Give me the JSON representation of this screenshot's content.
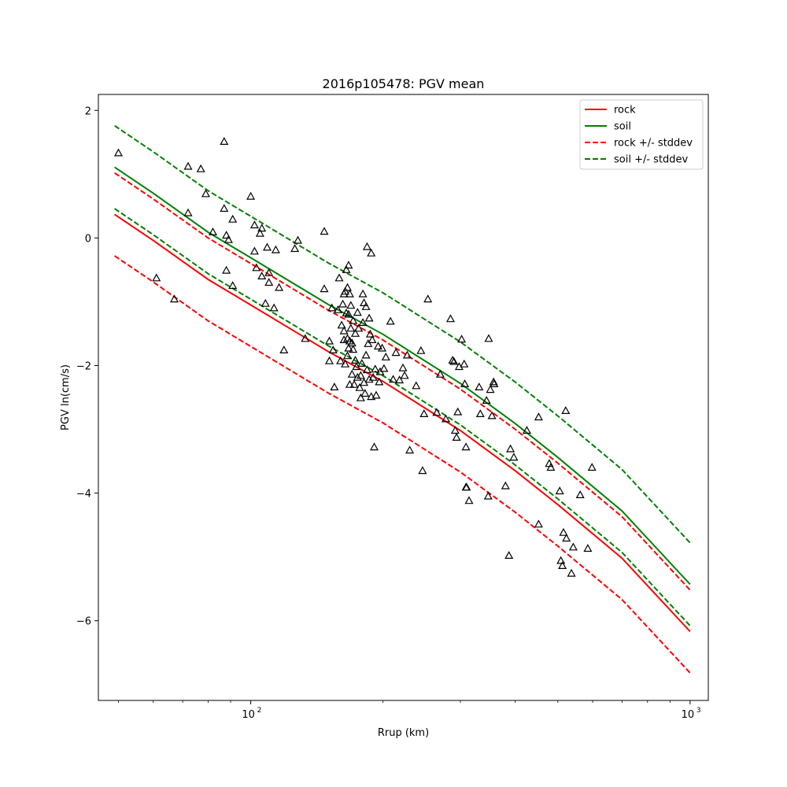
{
  "chart_data": {
    "type": "line",
    "title": "2016p105478: PGV mean",
    "xlabel": "Rrup (km)",
    "ylabel": "PGV ln(cm/s)",
    "xscale": "log",
    "xlim": [
      45,
      1100
    ],
    "ylim": [
      -7.25,
      2.25
    ],
    "yticks": [
      2,
      0,
      -2,
      -4,
      -6
    ],
    "ytick_labels": [
      "2",
      "0",
      "−2",
      "−4",
      "−6"
    ],
    "xticks": [
      100,
      1000
    ],
    "xtick_base": "10",
    "xtick_exps": [
      "2",
      "3"
    ],
    "grid": false,
    "legend_position": "top-right",
    "series": [
      {
        "name": "rock",
        "color": "#ff0000",
        "style": "solid",
        "x": [
          49,
          60,
          80,
          100,
          150,
          200,
          300,
          400,
          500,
          700,
          1000
        ],
        "y": [
          0.37,
          -0.04,
          -0.65,
          -1.05,
          -1.78,
          -2.25,
          -3.02,
          -3.65,
          -4.18,
          -5.02,
          -6.17
        ]
      },
      {
        "name": "soil",
        "color": "#008000",
        "style": "solid",
        "x": [
          49,
          60,
          80,
          100,
          150,
          200,
          300,
          400,
          500,
          700,
          1000
        ],
        "y": [
          1.11,
          0.7,
          0.09,
          -0.31,
          -1.04,
          -1.51,
          -2.28,
          -2.91,
          -3.44,
          -4.28,
          -5.43
        ]
      },
      {
        "name": "rock +/- stddev",
        "color": "#ff0000",
        "style": "dashed",
        "x": [
          49,
          60,
          80,
          100,
          150,
          200,
          300,
          400,
          500,
          700,
          1000
        ],
        "y": [
          1.02,
          0.61,
          0.0,
          -0.4,
          -1.13,
          -1.6,
          -2.37,
          -3.0,
          -3.53,
          -4.37,
          -5.52
        ]
      },
      {
        "name": "",
        "color": "#ff0000",
        "style": "dashed",
        "x": [
          49,
          60,
          80,
          100,
          150,
          200,
          300,
          400,
          500,
          700,
          1000
        ],
        "y": [
          -0.28,
          -0.69,
          -1.3,
          -1.7,
          -2.43,
          -2.9,
          -3.67,
          -4.3,
          -4.83,
          -5.67,
          -6.82
        ]
      },
      {
        "name": "soil +/- stddev",
        "color": "#008000",
        "style": "dashed",
        "x": [
          49,
          60,
          80,
          100,
          150,
          200,
          300,
          400,
          500,
          700,
          1000
        ],
        "y": [
          1.76,
          1.35,
          0.74,
          0.34,
          -0.39,
          -0.86,
          -1.63,
          -2.26,
          -2.79,
          -3.63,
          -4.78
        ]
      },
      {
        "name": "",
        "color": "#008000",
        "style": "dashed",
        "x": [
          49,
          60,
          80,
          100,
          150,
          200,
          300,
          400,
          500,
          700,
          1000
        ],
        "y": [
          0.46,
          0.05,
          -0.56,
          -0.96,
          -1.69,
          -2.16,
          -2.93,
          -3.56,
          -4.09,
          -4.93,
          -6.08
        ]
      }
    ],
    "observations": {
      "marker": "open-triangle",
      "color": "#000000",
      "points": [
        [
          50,
          1.33
        ],
        [
          61,
          -0.63
        ],
        [
          67,
          -0.96
        ],
        [
          72,
          1.12
        ],
        [
          72,
          0.39
        ],
        [
          77,
          1.08
        ],
        [
          79,
          0.69
        ],
        [
          82,
          0.09
        ],
        [
          87,
          1.51
        ],
        [
          87,
          0.46
        ],
        [
          88,
          0.04
        ],
        [
          88,
          -0.51
        ],
        [
          89,
          -0.03
        ],
        [
          91,
          0.29
        ],
        [
          91,
          -0.75
        ],
        [
          100,
          0.65
        ],
        [
          102,
          0.2
        ],
        [
          102,
          -0.21
        ],
        [
          103,
          -0.47
        ],
        [
          105,
          0.07
        ],
        [
          106,
          0.15
        ],
        [
          106,
          -0.6
        ],
        [
          108,
          -1.03
        ],
        [
          109,
          -0.15
        ],
        [
          110,
          -0.55
        ],
        [
          110,
          -0.7
        ],
        [
          113,
          -1.1
        ],
        [
          114,
          -0.19
        ],
        [
          116,
          -0.78
        ],
        [
          119,
          -1.76
        ],
        [
          126,
          -0.17
        ],
        [
          128,
          -0.04
        ],
        [
          133,
          -1.58
        ],
        [
          147,
          0.1
        ],
        [
          147,
          -0.8
        ],
        [
          151,
          -1.62
        ],
        [
          151,
          -1.93
        ],
        [
          153,
          -1.1
        ],
        [
          154,
          -1.76
        ],
        [
          155,
          -2.34
        ],
        [
          158,
          -1.13
        ],
        [
          159,
          -0.63
        ],
        [
          160,
          -1.93
        ],
        [
          161,
          -1.37
        ],
        [
          162,
          -1.04
        ],
        [
          163,
          -0.88
        ],
        [
          163,
          -1.46
        ],
        [
          163,
          -1.6
        ],
        [
          164,
          -0.84
        ],
        [
          164,
          -1.98
        ],
        [
          165,
          -0.5
        ],
        [
          165,
          -1.18
        ],
        [
          166,
          -0.78
        ],
        [
          166,
          -1.58
        ],
        [
          166,
          -1.85
        ],
        [
          167,
          -0.43
        ],
        [
          167,
          -1.2
        ],
        [
          167,
          -1.73
        ],
        [
          168,
          -0.88
        ],
        [
          168,
          -1.62
        ],
        [
          168,
          -2.3
        ],
        [
          169,
          -1.06
        ],
        [
          169,
          -1.42
        ],
        [
          170,
          -1.65
        ],
        [
          170,
          -2.14
        ],
        [
          171,
          -1.3
        ],
        [
          171,
          -1.75
        ],
        [
          172,
          -2.3
        ],
        [
          173,
          -1.5
        ],
        [
          173,
          -1.92
        ],
        [
          174,
          -2.02
        ],
        [
          175,
          -1.17
        ],
        [
          175,
          -2.19
        ],
        [
          176,
          -1.42
        ],
        [
          177,
          -2.35
        ],
        [
          178,
          -2.51
        ],
        [
          178,
          -2.16
        ],
        [
          179,
          -1.97
        ],
        [
          180,
          -0.88
        ],
        [
          180,
          -1.33
        ],
        [
          181,
          -1.02
        ],
        [
          181,
          -2.27
        ],
        [
          182,
          -2.44
        ],
        [
          183,
          -1.08
        ],
        [
          183,
          -1.84
        ],
        [
          184,
          -0.14
        ],
        [
          184,
          -2.07
        ],
        [
          185,
          -1.66
        ],
        [
          186,
          -2.22
        ],
        [
          186,
          -1.26
        ],
        [
          187,
          -1.51
        ],
        [
          188,
          -0.24
        ],
        [
          188,
          -2.49
        ],
        [
          189,
          -1.6
        ],
        [
          190,
          -2.19
        ],
        [
          191,
          -3.28
        ],
        [
          192,
          -2.06
        ],
        [
          193,
          -2.47
        ],
        [
          195,
          -1.7
        ],
        [
          196,
          -2.26
        ],
        [
          197,
          -2.1
        ],
        [
          199,
          -1.73
        ],
        [
          201,
          -2.05
        ],
        [
          203,
          -1.87
        ],
        [
          208,
          -1.31
        ],
        [
          211,
          -2.22
        ],
        [
          214,
          -1.8
        ],
        [
          218,
          -2.23
        ],
        [
          222,
          -2.04
        ],
        [
          224,
          -2.16
        ],
        [
          227,
          -1.84
        ],
        [
          230,
          -3.33
        ],
        [
          238,
          -2.32
        ],
        [
          244,
          -1.77
        ],
        [
          246,
          -3.65
        ],
        [
          248,
          -2.76
        ],
        [
          253,
          -0.96
        ],
        [
          265,
          -2.74
        ],
        [
          270,
          -2.14
        ],
        [
          278,
          -2.84
        ],
        [
          285,
          -1.27
        ],
        [
          288,
          -1.92
        ],
        [
          290,
          -1.94
        ],
        [
          292,
          -3.02
        ],
        [
          294,
          -3.13
        ],
        [
          296,
          -2.73
        ],
        [
          298,
          -2.02
        ],
        [
          302,
          -1.59
        ],
        [
          306,
          -1.98
        ],
        [
          307,
          -2.29
        ],
        [
          309,
          -3.28
        ],
        [
          309,
          -3.91
        ],
        [
          310,
          -3.91
        ],
        [
          314,
          -4.12
        ],
        [
          331,
          -2.34
        ],
        [
          333,
          -2.76
        ],
        [
          344,
          -2.55
        ],
        [
          347,
          -4.05
        ],
        [
          348,
          -1.58
        ],
        [
          351,
          -2.38
        ],
        [
          354,
          -2.79
        ],
        [
          357,
          -2.26
        ],
        [
          358,
          -2.29
        ],
        [
          380,
          -3.89
        ],
        [
          387,
          -4.98
        ],
        [
          390,
          -3.31
        ],
        [
          397,
          -3.44
        ],
        [
          425,
          -3.02
        ],
        [
          452,
          -2.81
        ],
        [
          452,
          -4.49
        ],
        [
          478,
          -3.54
        ],
        [
          482,
          -3.6
        ],
        [
          505,
          -3.97
        ],
        [
          508,
          -5.06
        ],
        [
          512,
          -5.14
        ],
        [
          515,
          -4.62
        ],
        [
          521,
          -2.71
        ],
        [
          523,
          -4.71
        ],
        [
          537,
          -5.26
        ],
        [
          542,
          -4.85
        ],
        [
          562,
          -4.03
        ],
        [
          585,
          -4.87
        ],
        [
          598,
          -3.6
        ]
      ]
    }
  }
}
